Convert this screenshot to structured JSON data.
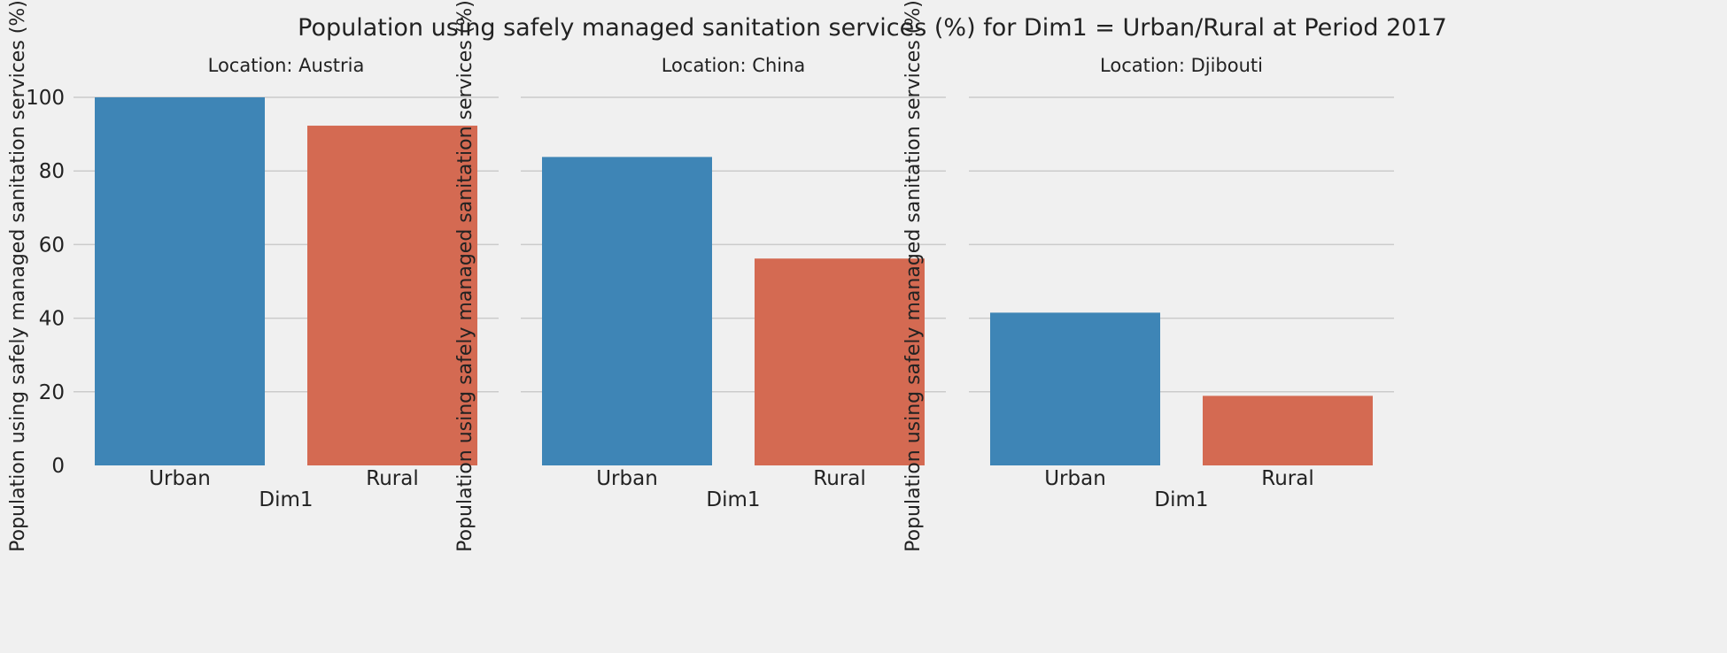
{
  "chart_data": {
    "type": "bar",
    "title": "Population using safely managed sanitation services (%) for Dim1 = Urban/Rural at Period 2017",
    "ylabel": "Population using safely managed sanitation services (%)",
    "xlabel": "Dim1",
    "ylim": [
      0,
      110
    ],
    "yticks": [
      0,
      20,
      40,
      60,
      80,
      100
    ],
    "grid": true,
    "shared_y": true,
    "colors": {
      "Urban": "#3e85b6",
      "Rural": "#d46a52"
    },
    "categories": [
      "Urban",
      "Rural"
    ],
    "panels": [
      {
        "title": "Location: Austria",
        "categories": [
          "Urban",
          "Rural"
        ],
        "values": [
          100.0,
          92.3
        ],
        "xlabel": "Dim1"
      },
      {
        "title": "Location: China",
        "categories": [
          "Urban",
          "Rural"
        ],
        "values": [
          83.8,
          56.2
        ],
        "xlabel": "Dim1"
      },
      {
        "title": "Location: Djibouti",
        "categories": [
          "Urban",
          "Rural"
        ],
        "values": [
          41.5,
          18.9
        ],
        "xlabel": "Dim1"
      }
    ]
  }
}
